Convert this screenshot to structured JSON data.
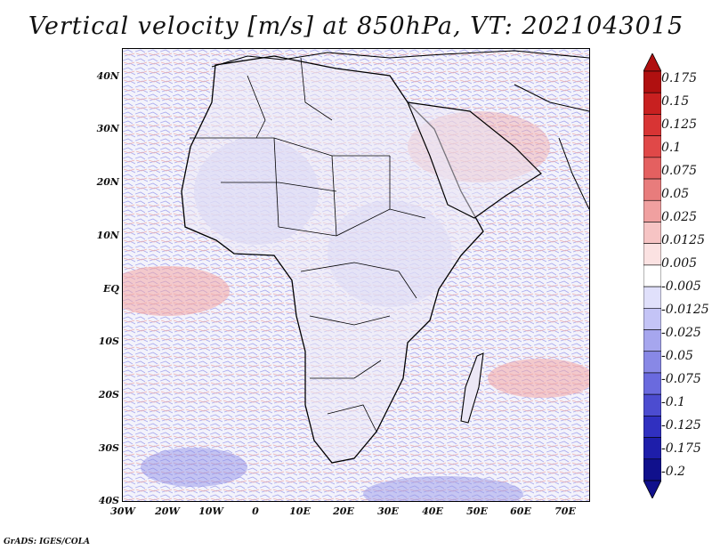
{
  "title": "Vertical velocity [m/s] at 850hPa, VT: 2021043015",
  "footer": "GrADS: IGES/COLA",
  "lat_labels": [
    "40N",
    "30N",
    "20N",
    "10N",
    "EQ",
    "10S",
    "20S",
    "30S",
    "40S"
  ],
  "lon_labels": [
    "30W",
    "20W",
    "10W",
    "0",
    "10E",
    "20E",
    "30E",
    "40E",
    "50E",
    "60E",
    "70E"
  ],
  "colorbar": {
    "labels": [
      "0.175",
      "0.15",
      "0.125",
      "0.1",
      "0.075",
      "0.05",
      "0.025",
      "0.0125",
      "0.005",
      "-0.005",
      "-0.0125",
      "-0.025",
      "-0.05",
      "-0.075",
      "-0.1",
      "-0.125",
      "-0.175",
      "-0.2"
    ],
    "colors": [
      "#b01010",
      "#c82020",
      "#d83434",
      "#e04848",
      "#e46060",
      "#e87c7c",
      "#f0a0a0",
      "#f6c4c4",
      "#fbe2e2",
      "#ffffff",
      "#e0e0fb",
      "#c4c4f6",
      "#a6a6ee",
      "#8888e6",
      "#6a6ade",
      "#4c4cd0",
      "#3030c0",
      "#1e1eaa",
      "#10108c"
    ]
  }
}
